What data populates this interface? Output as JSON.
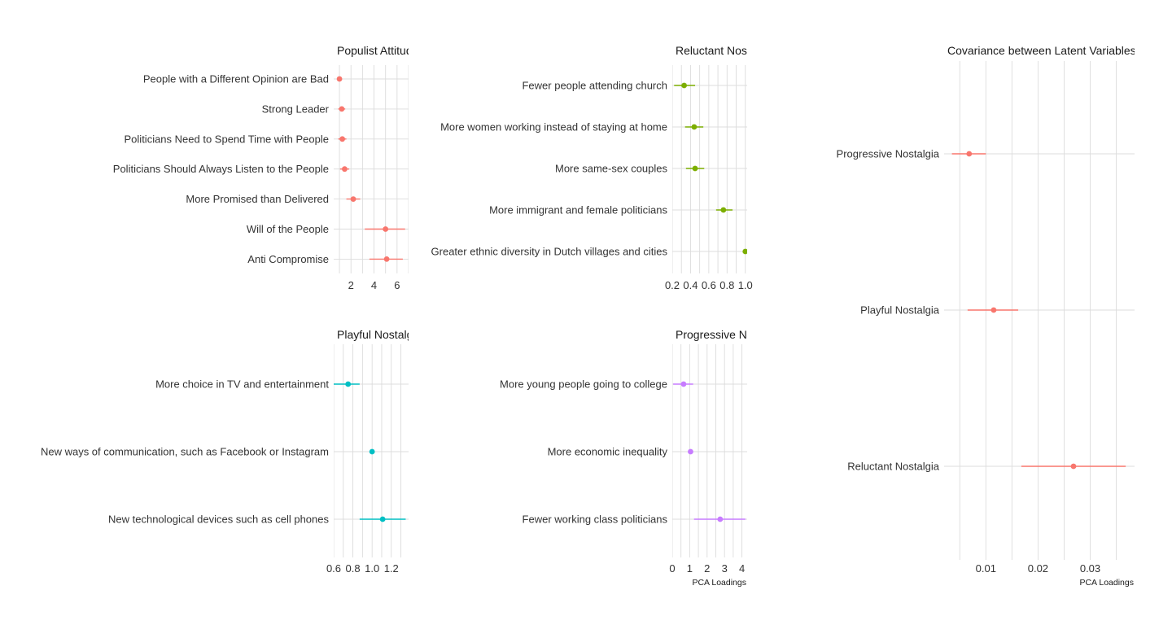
{
  "chart_data": [
    {
      "type": "pointrange",
      "title": "Populist Attitudes",
      "xlabel": "",
      "xlim": [
        0.5,
        7.0
      ],
      "xticks": [
        2,
        4,
        6
      ],
      "xtick_labels": [
        "2",
        "4",
        "6"
      ],
      "color": "#F8766D",
      "categories": [
        "People with a Different Opinion are Bad",
        "Strong Leader",
        "Politicians Need to Spend Time with People",
        "Politicians Should Always Listen to the People",
        "More Promised than Delivered",
        "Will of the People",
        "Anti Compromise"
      ],
      "values": [
        1.0,
        1.2,
        1.25,
        1.45,
        2.2,
        5.0,
        5.1
      ],
      "lower": [
        0.95,
        0.9,
        0.9,
        1.05,
        1.6,
        3.2,
        3.6
      ],
      "upper": [
        1.05,
        1.5,
        1.6,
        1.85,
        2.8,
        6.7,
        6.5
      ]
    },
    {
      "type": "pointrange",
      "title": "Reluctant Nostalgia",
      "xlabel": "",
      "xlim": [
        0.2,
        1.02
      ],
      "xticks": [
        0.2,
        0.4,
        0.6,
        0.8,
        1.0
      ],
      "xtick_labels": [
        "0.2",
        "0.4",
        "0.6",
        "0.8",
        "1.0"
      ],
      "color": "#7CAE00",
      "categories": [
        "Fewer people attending church",
        "More women working instead of staying at home",
        "More same-sex couples",
        "More immigrant and female politicians",
        "Greater ethnic diversity in Dutch villages and cities"
      ],
      "values": [
        0.33,
        0.44,
        0.45,
        0.76,
        1.0
      ],
      "lower": [
        0.22,
        0.34,
        0.35,
        0.68,
        1.0
      ],
      "upper": [
        0.45,
        0.54,
        0.55,
        0.86,
        1.0
      ]
    },
    {
      "type": "pointrange",
      "title": "Playful Nostalgia",
      "xlabel": "",
      "xlim": [
        0.6,
        1.38
      ],
      "xticks": [
        0.6,
        0.8,
        1.0,
        1.2
      ],
      "xtick_labels": [
        "0.6",
        "0.8",
        "1.0",
        "1.2"
      ],
      "color": "#00BFC4",
      "categories": [
        "More choice in TV and entertainment",
        "New ways of communication, such as Facebook or Instagram",
        "New technological devices such as cell phones"
      ],
      "values": [
        0.75,
        1.0,
        1.11
      ],
      "lower": [
        0.6,
        1.0,
        0.87
      ],
      "upper": [
        0.87,
        1.0,
        1.35
      ]
    },
    {
      "type": "pointrange",
      "title": "Progressive Nostalgia",
      "xlabel": "PCA Loadings",
      "xlim": [
        0,
        4.3
      ],
      "xticks": [
        0,
        1,
        2,
        3,
        4
      ],
      "xtick_labels": [
        "0",
        "1",
        "2",
        "3",
        "4"
      ],
      "color": "#C77CFF",
      "categories": [
        "More young people going to college",
        "More economic inequality",
        "Fewer working class politicians"
      ],
      "values": [
        0.65,
        1.05,
        2.75
      ],
      "lower": [
        0.05,
        1.05,
        1.25
      ],
      "upper": [
        1.2,
        1.05,
        4.2
      ]
    },
    {
      "type": "pointrange",
      "title": "Covariance between Latent Variables and Populism",
      "xlabel": "PCA Loadings",
      "xlim": [
        0.002,
        0.0385
      ],
      "xticks": [
        0.01,
        0.02,
        0.03
      ],
      "xtick_labels": [
        "0.01",
        "0.02",
        "0.03"
      ],
      "color": "#F8766D",
      "categories": [
        "Progressive Nostalgia",
        "Playful Nostalgia",
        "Reluctant Nostalgia"
      ],
      "values": [
        0.0068,
        0.0115,
        0.0268
      ],
      "lower": [
        0.0035,
        0.0065,
        0.0168
      ],
      "upper": [
        0.01,
        0.0162,
        0.0368
      ]
    }
  ]
}
